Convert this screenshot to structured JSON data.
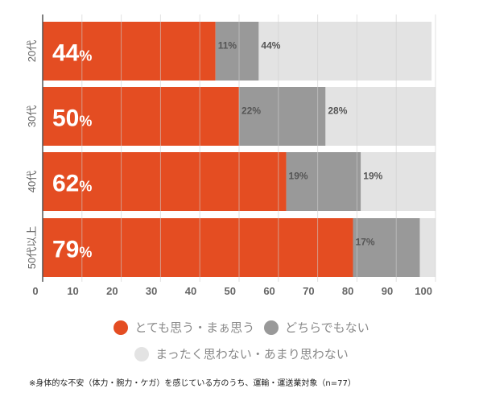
{
  "chart_data": {
    "type": "bar",
    "orientation": "horizontal",
    "stacked": true,
    "categories": [
      "20代",
      "30代",
      "40代",
      "50代以上"
    ],
    "series": [
      {
        "name": "とても思う・まぁ思う",
        "color": "#e44d22",
        "values": [
          44,
          50,
          62,
          79
        ],
        "labels": [
          "44",
          "50",
          "62",
          "79"
        ]
      },
      {
        "name": "どちらでもない",
        "color": "#999999",
        "values": [
          11,
          22,
          19,
          17
        ],
        "labels": [
          "11%",
          "22%",
          "19%",
          "17%"
        ]
      },
      {
        "name": "まったく思わない・あまり思わない",
        "color": "#e3e3e3",
        "values": [
          44,
          28,
          19,
          4
        ],
        "labels": [
          "44%",
          "28%",
          "19%",
          ""
        ]
      }
    ],
    "percent_sign": "%",
    "xlim": [
      0,
      100
    ],
    "xticks": [
      "0",
      "10",
      "20",
      "30",
      "40",
      "50",
      "60",
      "70",
      "80",
      "90",
      "100"
    ],
    "grid": true,
    "legend_position": "bottom"
  },
  "footnote": "※身体的な不安（体力・腕力・ケガ）を感じている方のうち、運輸・運送業対象（n=77）"
}
